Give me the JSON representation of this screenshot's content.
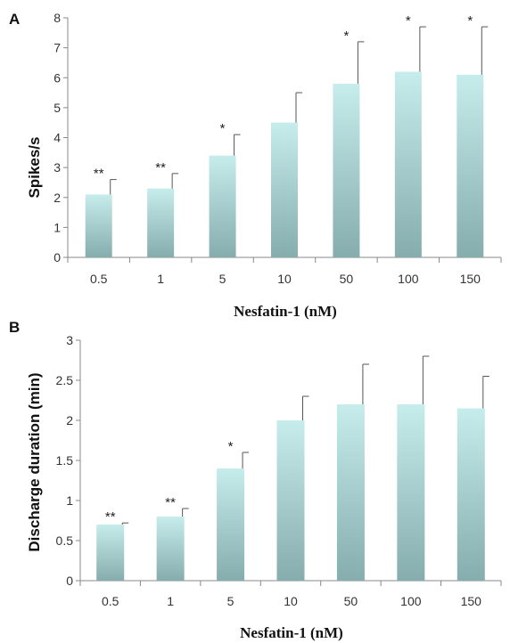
{
  "colors": {
    "bar_top": "#c6ecec",
    "bar_bottom": "#86adad",
    "axis": "#888888"
  },
  "chart_data": [
    {
      "panel": "A",
      "type": "bar",
      "xlabel": "Nesfatin-1 (nM)",
      "ylabel": "Spikes/s",
      "categories": [
        "0.5",
        "1",
        "5",
        "10",
        "50",
        "100",
        "150"
      ],
      "values": [
        2.1,
        2.3,
        3.4,
        4.5,
        5.8,
        6.2,
        6.1
      ],
      "errors": [
        0.5,
        0.5,
        0.7,
        1.0,
        1.4,
        1.5,
        1.6
      ],
      "significance": [
        "**",
        "**",
        "*",
        "",
        "*",
        "*",
        "*"
      ],
      "ylim": [
        0,
        8
      ],
      "yticks": [
        "0",
        "1",
        "2",
        "3",
        "4",
        "5",
        "6",
        "7",
        "8"
      ]
    },
    {
      "panel": "B",
      "type": "bar",
      "xlabel": "Nesfatin-1 (nM)",
      "ylabel": "Discharge duration (min)",
      "categories": [
        "0.5",
        "1",
        "5",
        "10",
        "50",
        "100",
        "150"
      ],
      "values": [
        0.7,
        0.8,
        1.4,
        2.0,
        2.2,
        2.2,
        2.15
      ],
      "errors": [
        0.02,
        0.1,
        0.2,
        0.3,
        0.5,
        0.6,
        0.4
      ],
      "significance": [
        "**",
        "**",
        "*",
        "",
        "",
        "",
        ""
      ],
      "ylim": [
        0,
        3
      ],
      "yticks": [
        "0",
        "0.5",
        "1",
        "1.5",
        "2",
        "2.5",
        "3"
      ]
    }
  ]
}
